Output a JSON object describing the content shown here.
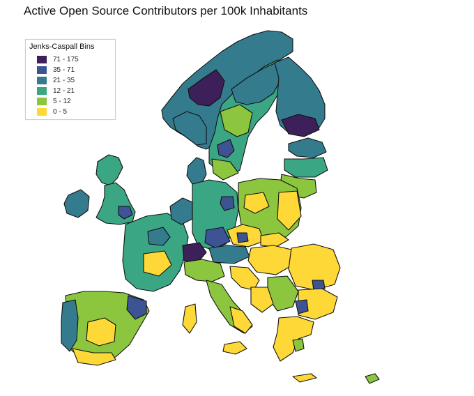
{
  "title": "Active Open Source Contributors per 100k Inhabitants",
  "legend": {
    "title": "Jenks-Caspall Bins",
    "bins": [
      {
        "label": "71 - 175",
        "color": "#3d1f5a"
      },
      {
        "label": "35 - 71",
        "color": "#3d5394"
      },
      {
        "label": "21 - 35",
        "color": "#357b8e"
      },
      {
        "label": "12 - 21",
        "color": "#3aa683"
      },
      {
        "label": "5 - 12",
        "color": "#8cc63f"
      },
      {
        "label": "0 - 5",
        "color": "#fdd836"
      }
    ]
  }
}
